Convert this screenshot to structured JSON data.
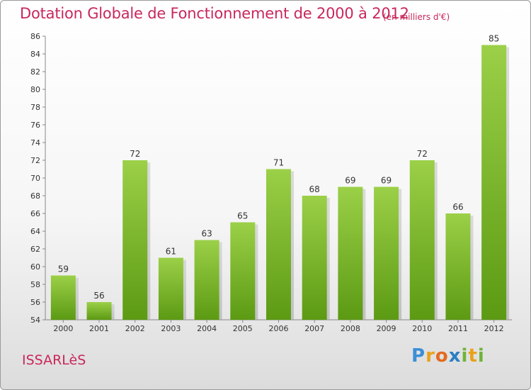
{
  "title": "Dotation Globale de Fonctionnement de 2000 à 2012",
  "unit_note": "(en milliers d'€)",
  "commune": "ISSARLèS",
  "brand": {
    "letters": [
      "P",
      "r",
      "o",
      "x",
      "i",
      "t",
      "i"
    ],
    "colors": [
      "#3b8fd6",
      "#e9a21b",
      "#e46a1f",
      "#2a7fc4",
      "#6fb43a",
      "#e9a21b",
      "#6fb43a"
    ]
  },
  "colors": {
    "title": "#c8285a",
    "bar_top": "#9bd048",
    "bar_bottom": "#5c9a13"
  },
  "chart_data": {
    "type": "bar",
    "title": "Dotation Globale de Fonctionnement de 2000 à 2012",
    "categories": [
      "2000",
      "2001",
      "2002",
      "2003",
      "2004",
      "2005",
      "2006",
      "2007",
      "2008",
      "2009",
      "2010",
      "2011",
      "2012"
    ],
    "values": [
      59,
      56,
      72,
      61,
      63,
      65,
      71,
      68,
      69,
      69,
      72,
      66,
      85
    ],
    "ylim": [
      54,
      86
    ],
    "yticks": [
      54,
      56,
      58,
      60,
      62,
      64,
      66,
      68,
      70,
      72,
      74,
      76,
      78,
      80,
      82,
      84,
      86
    ],
    "grid": false,
    "legend": "none"
  }
}
